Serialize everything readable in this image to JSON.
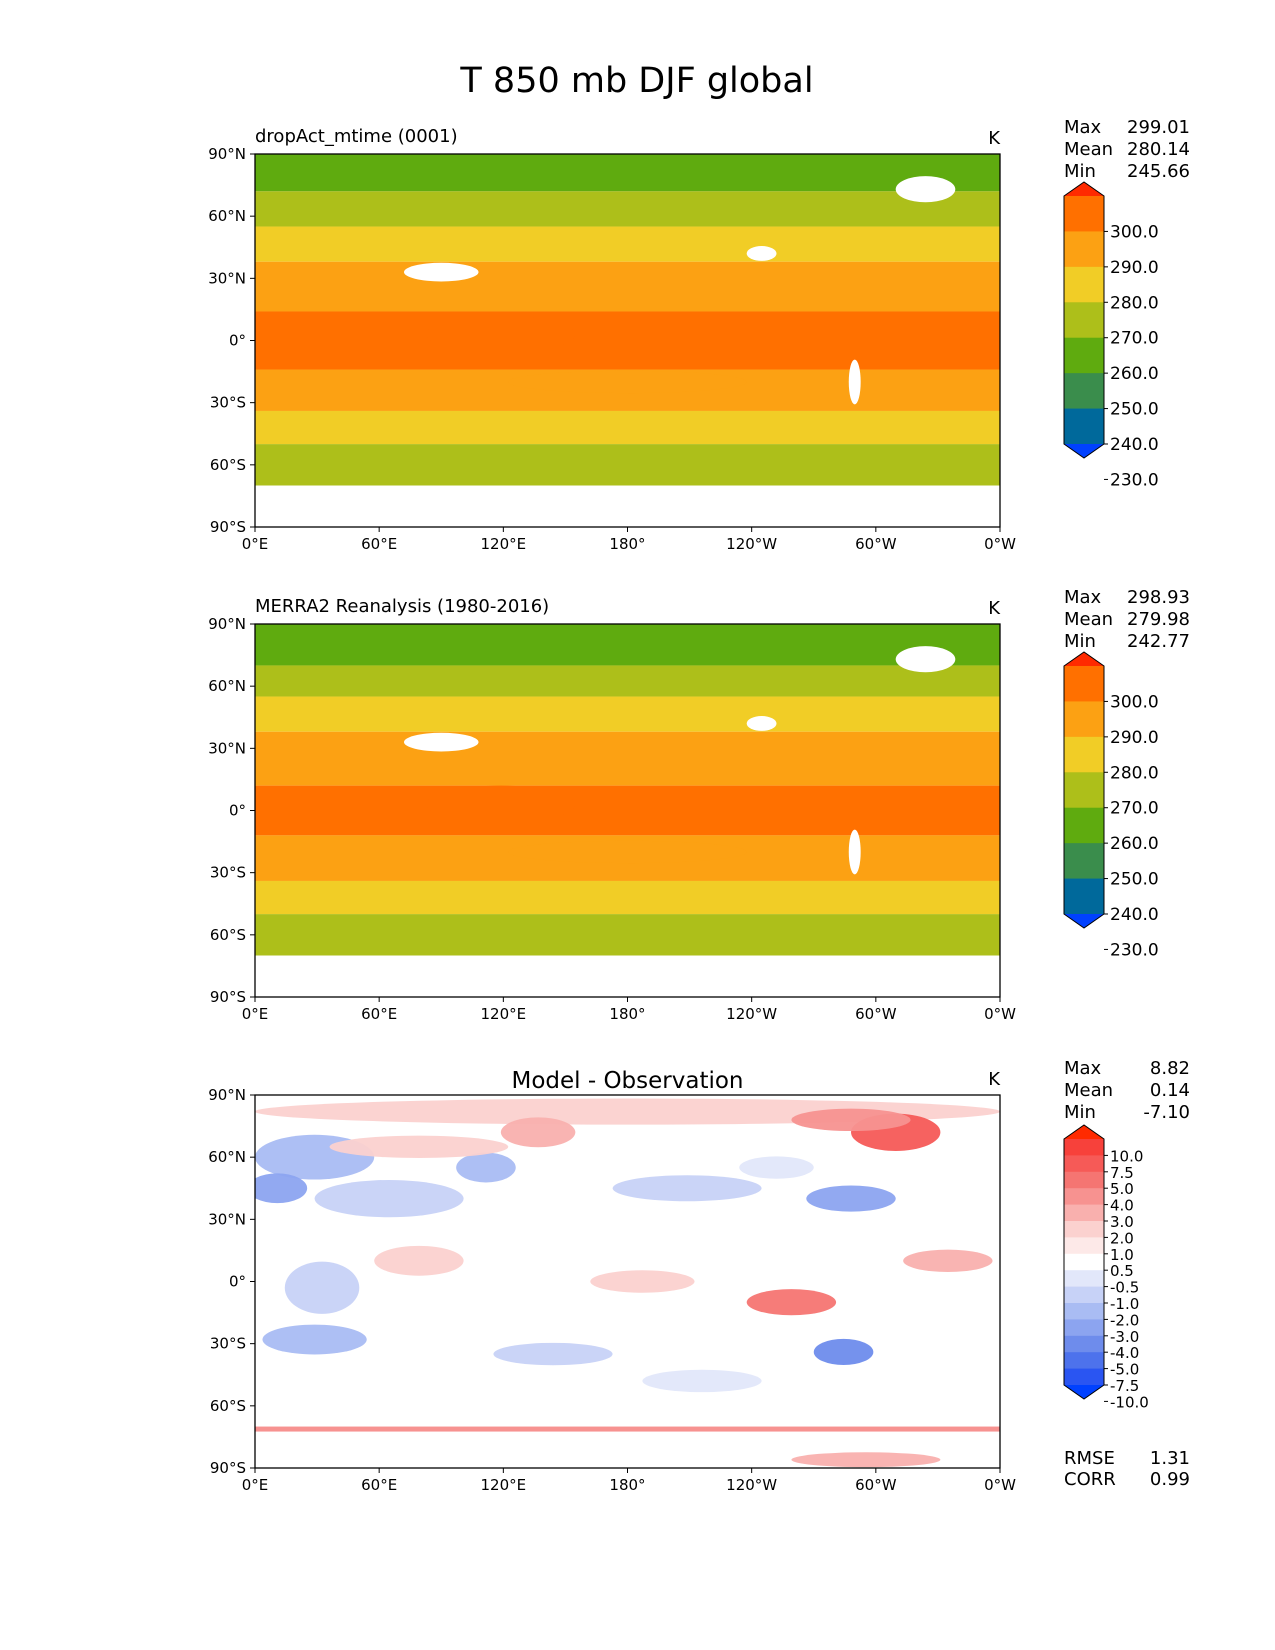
{
  "chart_data": {
    "type": "heatmap",
    "title": "T 850 mb DJF global",
    "units": "K",
    "lon_ticks": [
      "0°E",
      "60°E",
      "120°E",
      "180°",
      "120°W",
      "60°W",
      "0°W"
    ],
    "lat_ticks": [
      "90°N",
      "60°N",
      "30°N",
      "0°",
      "30°S",
      "60°S",
      "90°S"
    ],
    "stats_labels": [
      "Max",
      "Mean",
      "Min"
    ],
    "panels": [
      {
        "id": "test",
        "title": "dropAct_mtime (0001)",
        "title_align": "left",
        "units": "K",
        "stats": [
          "299.01",
          "280.14",
          "245.66"
        ],
        "colorbar": {
          "levels": [
            "300.0",
            "290.0",
            "280.0",
            "270.0",
            "260.0",
            "250.0",
            "240.0",
            "230.0"
          ],
          "colors": [
            "#ff2a00",
            "#ff7000",
            "#fca113",
            "#f1cd26",
            "#adbf1a",
            "#5fab0f",
            "#3a8d4c",
            "#00699b",
            "#0041ff"
          ]
        },
        "lat_bands": [
          {
            "lat": 90,
            "color": "#5fab0f"
          },
          {
            "lat": 72,
            "color": "#adbf1a"
          },
          {
            "lat": 55,
            "color": "#f1cd26"
          },
          {
            "lat": 38,
            "color": "#fca113"
          },
          {
            "lat": 14,
            "color": "#ff7000"
          },
          {
            "lat": -14,
            "color": "#fca113"
          },
          {
            "lat": -34,
            "color": "#f1cd26"
          },
          {
            "lat": -50,
            "color": "#adbf1a"
          },
          {
            "lat": -70,
            "color": "#ffffff"
          }
        ]
      },
      {
        "id": "ref",
        "title": "MERRA2 Reanalysis (1980-2016)",
        "title_align": "left",
        "units": "K",
        "stats": [
          "298.93",
          "279.98",
          "242.77"
        ],
        "colorbar": {
          "levels": [
            "300.0",
            "290.0",
            "280.0",
            "270.0",
            "260.0",
            "250.0",
            "240.0",
            "230.0"
          ],
          "colors": [
            "#ff2a00",
            "#ff7000",
            "#fca113",
            "#f1cd26",
            "#adbf1a",
            "#5fab0f",
            "#3a8d4c",
            "#00699b",
            "#0041ff"
          ]
        },
        "lat_bands": [
          {
            "lat": 90,
            "color": "#5fab0f"
          },
          {
            "lat": 70,
            "color": "#adbf1a"
          },
          {
            "lat": 55,
            "color": "#f1cd26"
          },
          {
            "lat": 38,
            "color": "#fca113"
          },
          {
            "lat": 12,
            "color": "#ff7000"
          },
          {
            "lat": -12,
            "color": "#fca113"
          },
          {
            "lat": -34,
            "color": "#f1cd26"
          },
          {
            "lat": -50,
            "color": "#adbf1a"
          },
          {
            "lat": -70,
            "color": "#ffffff"
          }
        ]
      },
      {
        "id": "diff",
        "title": "Model - Observation",
        "title_align": "center",
        "units": "K",
        "stats": [
          "8.82",
          "0.14",
          "-7.10"
        ],
        "colorbar": {
          "levels": [
            "10.0",
            "7.5",
            "5.0",
            "4.0",
            "3.0",
            "2.0",
            "1.0",
            "0.5",
            "-0.5",
            "-1.0",
            "-2.0",
            "-3.0",
            "-4.0",
            "-5.0",
            "-7.5",
            "-10.0"
          ],
          "colors": [
            "#ff2a00",
            "#f7413b",
            "#f65a57",
            "#f57572",
            "#f79290",
            "#f9b0ae",
            "#fbd1cf",
            "#fde9e8",
            "#ffffff",
            "#e2e7fa",
            "#c7d2f7",
            "#a9bcf3",
            "#8ca4f0",
            "#6e8cec",
            "#4d72ec",
            "#2a55f2",
            "#0041ff"
          ]
        },
        "lat_bands": [],
        "metrics": [
          {
            "label": "RMSE",
            "value": "1.31"
          },
          {
            "label": "CORR",
            "value": "0.99"
          }
        ]
      }
    ]
  }
}
